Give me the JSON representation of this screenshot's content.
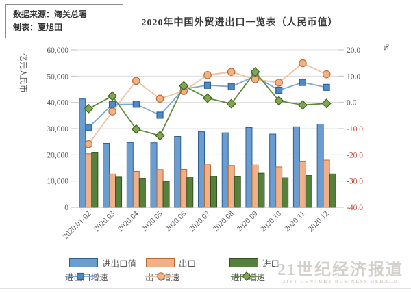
{
  "source_box": {
    "line1": "数据来源：海关总署",
    "line2": "制表：夏旭田"
  },
  "watermark": {
    "cn": "21世纪经济报道",
    "en": "21ST CENTURY BUSINESS HERALD"
  },
  "chart_data": {
    "type": "bar+line combo",
    "title": "2020年中国外贸进出口一览表（人民币值）",
    "grid": true,
    "legend_position": "bottom",
    "categories": [
      "2020.01-02",
      "2020.03",
      "2020.04",
      "2020.05",
      "2020.06",
      "2020.07",
      "2020.08",
      "2020.09",
      "2020.10",
      "2020.11",
      "2020.12"
    ],
    "left_axis": {
      "title": "亿元人民币",
      "min": 0,
      "max": 60000,
      "step": 10000,
      "tick_labels": [
        "0",
        "10,000",
        "20,000",
        "30,000",
        "40,000",
        "50,000",
        "60,000"
      ],
      "text_color": "#595959"
    },
    "right_axis": {
      "title": "%",
      "min": -40,
      "max": 20,
      "step": 10,
      "tick_labels": [
        "-40.0",
        "-30.0",
        "-20.0",
        "-10.0",
        "0.0",
        "10.0",
        "20.0"
      ],
      "text_color": "#595959",
      "negative_color": "#c0392b"
    },
    "series": [
      {
        "id": "total",
        "name": "进出口值",
        "type": "bar",
        "axis": "left",
        "color": "#6b9dd1",
        "border": "#2e5f8f",
        "values": [
          41300,
          24400,
          24700,
          24600,
          27000,
          28800,
          28400,
          30400,
          27900,
          30700,
          31700
        ]
      },
      {
        "id": "export",
        "name": "出口",
        "type": "bar",
        "axis": "left",
        "color": "#f2b088",
        "border": "#b96a32",
        "values": [
          20400,
          12700,
          13700,
          14400,
          14500,
          16200,
          15900,
          16100,
          15400,
          17400,
          18000
        ]
      },
      {
        "id": "import",
        "name": "进口",
        "type": "bar",
        "axis": "left",
        "color": "#56813d",
        "border": "#33511f",
        "values": [
          20800,
          11500,
          10800,
          9900,
          11300,
          11800,
          11700,
          13000,
          11200,
          12100,
          12700
        ]
      },
      {
        "id": "total-growth",
        "name": "进出口增速",
        "type": "line",
        "marker": "square",
        "axis": "right",
        "color": "#7da7d8",
        "marker_fill": "#4e8ac8",
        "marker_stroke": "#2e6399",
        "values": [
          -9.6,
          -0.8,
          -0.7,
          -4.9,
          5.1,
          6.5,
          6.0,
          10.0,
          4.6,
          7.6,
          5.7
        ]
      },
      {
        "id": "export-growth",
        "name": "出口增速",
        "type": "line",
        "marker": "circle",
        "axis": "right",
        "color": "#f0c0a0",
        "marker_fill": "#f4b183",
        "marker_stroke": "#b5713a",
        "values": [
          -15.9,
          -3.5,
          8.2,
          1.4,
          4.3,
          10.4,
          11.6,
          8.8,
          7.5,
          14.9,
          10.7
        ]
      },
      {
        "id": "import-growth",
        "name": "进口增速",
        "type": "line",
        "marker": "diamond",
        "axis": "right",
        "color": "#5f8c3c",
        "marker_fill": "#7fa650",
        "marker_stroke": "#44631f",
        "values": [
          -2.4,
          2.4,
          -10.2,
          -12.7,
          6.3,
          1.6,
          -0.5,
          11.6,
          0.6,
          -1.0,
          -0.4
        ]
      }
    ],
    "colors": {
      "gridline": "#dcdcdc",
      "axis_stub": "#bfbfbf"
    }
  }
}
